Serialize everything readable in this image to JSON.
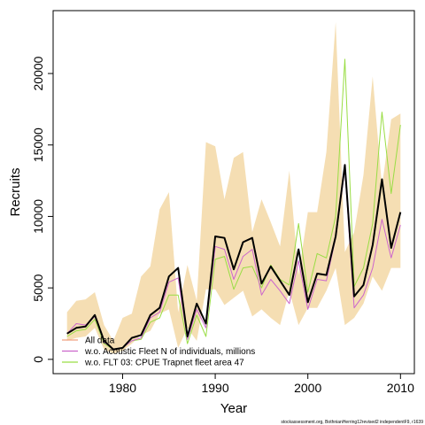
{
  "chart_data": {
    "type": "line",
    "title": "",
    "xlabel": "Year",
    "ylabel": "Recruits",
    "xlim": [
      1972.5,
      2011.5
    ],
    "ylim": [
      -1000,
      24400
    ],
    "x_ticks": [
      1980,
      1990,
      2000,
      2010
    ],
    "x_tick_labels": [
      "1980",
      "1990",
      "2000",
      "2010"
    ],
    "y_ticks": [
      0,
      5000,
      10000,
      15000,
      20000
    ],
    "y_tick_labels": [
      "0",
      "5000",
      "10000",
      "15000",
      "20000"
    ],
    "grid": false,
    "legend_position": "bottom-left",
    "years": [
      1974,
      1975,
      1976,
      1977,
      1978,
      1979,
      1980,
      1981,
      1982,
      1983,
      1984,
      1985,
      1986,
      1987,
      1988,
      1989,
      1990,
      1991,
      1992,
      1993,
      1994,
      1995,
      1996,
      1997,
      1998,
      1999,
      2000,
      2001,
      2002,
      2003,
      2004,
      2005,
      2006,
      2007,
      2008,
      2009,
      2010
    ],
    "band": {
      "color": "#f5deb3",
      "lower": [
        1300,
        1500,
        1600,
        2200,
        700,
        400,
        600,
        1100,
        1700,
        2000,
        3200,
        3500,
        800,
        2200,
        1300,
        4900,
        4900,
        3800,
        4300,
        4800,
        3000,
        3500,
        2900,
        2400,
        4800,
        2400,
        3600,
        3600,
        4800,
        6400,
        2400,
        2900,
        3900,
        5800,
        4800,
        6400,
        6400
      ],
      "upper": [
        3300,
        4100,
        4200,
        4700,
        2400,
        1300,
        2900,
        3200,
        5800,
        6500,
        10500,
        11700,
        3300,
        6600,
        4100,
        15200,
        14900,
        11200,
        14100,
        14500,
        8900,
        11200,
        9600,
        7900,
        13200,
        5900,
        10300,
        10300,
        14500,
        23600,
        7500,
        8900,
        12900,
        19800,
        12100,
        16800,
        17200
      ]
    },
    "series": [
      {
        "name": "All data",
        "color": "#000000",
        "width": 2,
        "values": [
          1800,
          2200,
          2300,
          3100,
          1300,
          700,
          800,
          1500,
          1700,
          3100,
          3600,
          5800,
          6400,
          1600,
          3900,
          2500,
          8600,
          8500,
          6300,
          8200,
          8500,
          5300,
          6500,
          5500,
          4500,
          7700,
          4000,
          6000,
          5900,
          8600,
          13600,
          4400,
          5200,
          8000,
          12600,
          7800,
          10300
        ]
      },
      {
        "name": "w.o. Acoustic Fleet  N of individuals, millions",
        "color": "#cc66cc",
        "width": 1,
        "values": [
          1800,
          2500,
          2400,
          3000,
          1200,
          700,
          800,
          1300,
          1500,
          2900,
          3300,
          5400,
          5700,
          1400,
          3500,
          2200,
          7900,
          7700,
          5600,
          7200,
          7700,
          4500,
          5600,
          4800,
          3900,
          6900,
          3500,
          5600,
          5500,
          8500,
          13300,
          3600,
          4500,
          6400,
          9800,
          7100,
          9400
        ]
      },
      {
        "name": "w.o. FLT 03: CPUE Trapnet fleet area 47",
        "color": "#99dd44",
        "width": 1,
        "values": [
          1600,
          2000,
          2100,
          2800,
          1100,
          700,
          800,
          1300,
          1400,
          2600,
          2900,
          4500,
          4500,
          1100,
          3100,
          1600,
          7000,
          7200,
          4900,
          6400,
          6500,
          5000,
          6600,
          5600,
          5200,
          9500,
          4700,
          7400,
          7100,
          10000,
          21000,
          5100,
          6400,
          9500,
          17300,
          11600,
          16400
        ]
      }
    ],
    "legend": [
      {
        "label": "All data",
        "color": "#f0a080"
      },
      {
        "label": "w.o. Acoustic Fleet  N of individuals, millions",
        "color": "#cc66cc"
      },
      {
        "label": "w.o. FLT 03: CPUE Trapnet fleet area 47",
        "color": "#99dd44"
      }
    ],
    "footnote": "stockassessment.org, BothnianHerring12revised2 independentF9, r1639"
  }
}
